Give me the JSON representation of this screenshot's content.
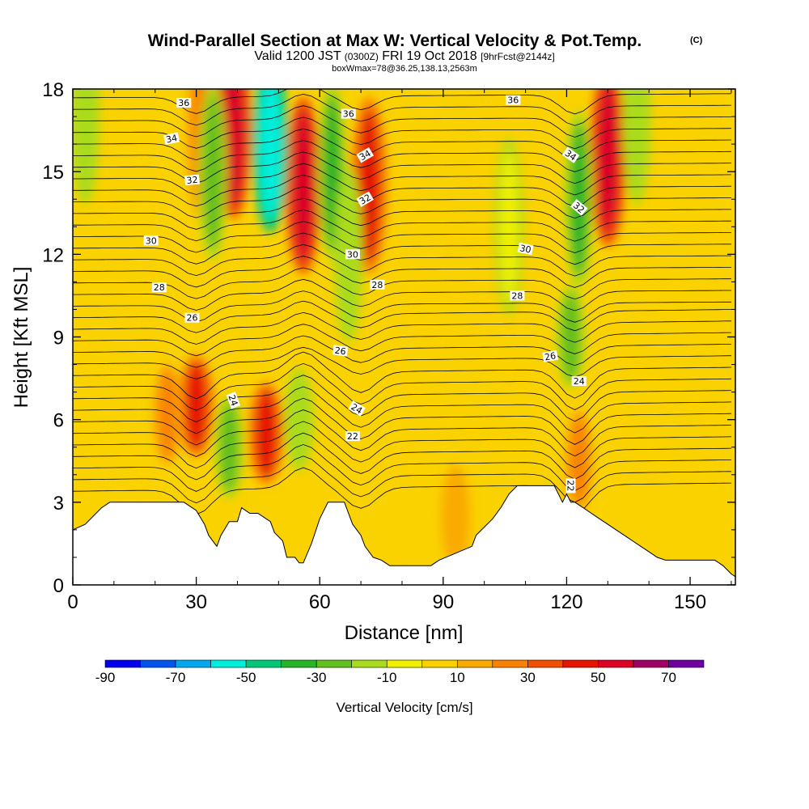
{
  "header": {
    "title_main": "Wind-Parallel Section at Max W: Vertical Velocity & Pot.Temp.",
    "title_mark": "(C)",
    "valid_a": "Valid 1200 JST ",
    "valid_b": "(0300Z)",
    "valid_c": " FRI 19 Oct 2018 ",
    "valid_d": "[9hrFcst@2144z]",
    "box_info": "boxWmax=78@36.25,138.13,2563m"
  },
  "chart_data": {
    "type": "heatmap",
    "xlabel": "Distance [nm]",
    "ylabel": "Height [Kft MSL]",
    "xlim": [
      0,
      161
    ],
    "ylim": [
      0,
      18
    ],
    "x_ticks": [
      0,
      30,
      60,
      90,
      120,
      150
    ],
    "x_tick_labels": [
      "0",
      "30",
      "60",
      "90",
      "120",
      "150"
    ],
    "y_ticks": [
      0,
      3,
      6,
      9,
      12,
      15,
      18
    ],
    "y_tick_labels": [
      "0",
      "3",
      "6",
      "9",
      "12",
      "15",
      "18"
    ],
    "colorbar": {
      "label": "Vertical Velocity [cm/s]",
      "bounds": [
        -90,
        -80,
        -70,
        -60,
        -50,
        -40,
        -30,
        -20,
        -10,
        0,
        10,
        20,
        30,
        40,
        50,
        60,
        70,
        80
      ],
      "tick_values": [
        -90,
        -70,
        -50,
        -30,
        -10,
        10,
        30,
        50,
        70
      ],
      "tick_labels": [
        "-90",
        "-70",
        "-50",
        "-30",
        "-10",
        "10",
        "30",
        "50",
        "70"
      ],
      "colors": [
        "#0000ee",
        "#0055ee",
        "#00a8ee",
        "#00eedc",
        "#00c878",
        "#28b428",
        "#64be1e",
        "#aadc1e",
        "#f0f000",
        "#fad200",
        "#faaa00",
        "#fa8200",
        "#f05000",
        "#e61400",
        "#dc0028",
        "#a00064",
        "#6e00a0"
      ]
    },
    "vertical_velocity_cells": [
      {
        "x": [
          0,
          8
        ],
        "y": [
          0,
          18
        ],
        "w": 5
      },
      {
        "x": [
          8,
          16
        ],
        "y": [
          0,
          18
        ],
        "w": 5
      },
      {
        "x": [
          16,
          22
        ],
        "y": [
          0,
          18
        ],
        "w": 5
      },
      {
        "x": [
          22,
          28
        ],
        "y": [
          0,
          18
        ],
        "w": 5
      },
      {
        "x": [
          28,
          33
        ],
        "y": [
          0,
          18
        ],
        "w": 5
      },
      {
        "x": [
          33,
          38
        ],
        "y": [
          0,
          18
        ],
        "w": 5
      },
      {
        "x": [
          38,
          43
        ],
        "y": [
          0,
          18
        ],
        "w": 5
      },
      {
        "x": [
          43,
          48
        ],
        "y": [
          0,
          18
        ],
        "w": 5
      },
      {
        "x": [
          48,
          53
        ],
        "y": [
          0,
          18
        ],
        "w": 5
      },
      {
        "x": [
          53,
          58
        ],
        "y": [
          0,
          18
        ],
        "w": 5
      },
      {
        "x": [
          58,
          63
        ],
        "y": [
          0,
          18
        ],
        "w": 5
      },
      {
        "x": [
          63,
          68
        ],
        "y": [
          0,
          18
        ],
        "w": 5
      },
      {
        "x": [
          68,
          73
        ],
        "y": [
          0,
          18
        ],
        "w": 5
      },
      {
        "x": [
          73,
          80
        ],
        "y": [
          0,
          18
        ],
        "w": 5
      },
      {
        "x": [
          80,
          90
        ],
        "y": [
          0,
          18
        ],
        "w": 5
      },
      {
        "x": [
          90,
          100
        ],
        "y": [
          0,
          18
        ],
        "w": 5
      },
      {
        "x": [
          100,
          108
        ],
        "y": [
          0,
          18
        ],
        "w": 5
      },
      {
        "x": [
          108,
          115
        ],
        "y": [
          0,
          18
        ],
        "w": 5
      },
      {
        "x": [
          115,
          120
        ],
        "y": [
          0,
          18
        ],
        "w": 5
      },
      {
        "x": [
          120,
          125
        ],
        "y": [
          0,
          18
        ],
        "w": 5
      },
      {
        "x": [
          125,
          130
        ],
        "y": [
          0,
          18
        ],
        "w": 5
      },
      {
        "x": [
          130,
          136
        ],
        "y": [
          0,
          18
        ],
        "w": 5
      },
      {
        "x": [
          136,
          145
        ],
        "y": [
          0,
          18
        ],
        "w": 5
      },
      {
        "x": [
          145,
          161
        ],
        "y": [
          0,
          18
        ],
        "w": 5
      }
    ],
    "updraft_cores": [
      {
        "x": 30,
        "y": 6.5,
        "w": 45
      },
      {
        "x": 23,
        "y": 6.2,
        "w": 25
      },
      {
        "x": 47,
        "y": 5.5,
        "w": 45
      },
      {
        "x": 31,
        "y": 16.5,
        "w": 20
      },
      {
        "x": 39,
        "y": 16.5,
        "w": 50
      },
      {
        "x": 56,
        "y": 14.5,
        "w": 55
      },
      {
        "x": 72,
        "y": 14.5,
        "w": 45
      },
      {
        "x": 130,
        "y": 15.5,
        "w": 50
      },
      {
        "x": 123,
        "y": 4.5,
        "w": 25
      },
      {
        "x": 93,
        "y": 2.5,
        "w": 15
      }
    ],
    "downdraft_cores": [
      {
        "x": 38,
        "y": 5.0,
        "w": -30
      },
      {
        "x": 34,
        "y": 15,
        "w": -30
      },
      {
        "x": 48,
        "y": 16,
        "w": -60
      },
      {
        "x": 63,
        "y": 15,
        "w": -35
      },
      {
        "x": 67,
        "y": 12,
        "w": -20
      },
      {
        "x": 55,
        "y": 6,
        "w": -15
      },
      {
        "x": 123,
        "y": 14,
        "w": -35
      },
      {
        "x": 121,
        "y": 9,
        "w": -25
      },
      {
        "x": 106,
        "y": 13,
        "w": -10
      },
      {
        "x": 3,
        "y": 17,
        "w": -15
      },
      {
        "x": 137,
        "y": 17,
        "w": -15
      }
    ],
    "terrain_profile": {
      "x": [
        0,
        3,
        5,
        7,
        9,
        18,
        27,
        30,
        32,
        33,
        35,
        36,
        38,
        40,
        41,
        43,
        45,
        48,
        49,
        51,
        52,
        54,
        55,
        56,
        58,
        60,
        62,
        66,
        67,
        68,
        70,
        71,
        73,
        75,
        77,
        79,
        81,
        83,
        85,
        87,
        89,
        97,
        98,
        100,
        102,
        104,
        106,
        108,
        111,
        117,
        119,
        120,
        121,
        122,
        124,
        126,
        128,
        130,
        132,
        134,
        136,
        138,
        140,
        142,
        144,
        146,
        148,
        156,
        158,
        160,
        161
      ],
      "y": [
        2.0,
        2.2,
        2.5,
        2.8,
        3.0,
        3.0,
        3.0,
        2.7,
        2.2,
        1.8,
        1.4,
        1.8,
        2.3,
        2.3,
        2.8,
        2.6,
        2.6,
        2.3,
        1.9,
        1.6,
        1.0,
        1.0,
        0.8,
        0.8,
        1.5,
        2.4,
        3.0,
        3.0,
        2.6,
        2.2,
        1.8,
        1.4,
        1.0,
        0.9,
        0.7,
        0.7,
        0.7,
        0.7,
        0.7,
        0.7,
        0.9,
        1.4,
        1.8,
        2.1,
        2.4,
        2.8,
        3.3,
        3.6,
        3.6,
        3.6,
        3.0,
        3.3,
        3.0,
        3.0,
        2.8,
        2.6,
        2.4,
        2.2,
        2.0,
        1.8,
        1.6,
        1.4,
        1.2,
        1.0,
        0.9,
        0.9,
        0.9,
        0.9,
        0.7,
        0.4,
        0.3
      ]
    },
    "theta_contour_labels": [
      {
        "text": "36",
        "x": 27,
        "y": 17.5,
        "angle": 0
      },
      {
        "text": "34",
        "x": 24,
        "y": 16.2,
        "angle": -12
      },
      {
        "text": "32",
        "x": 29,
        "y": 14.7,
        "angle": -5
      },
      {
        "text": "30",
        "x": 19,
        "y": 12.5,
        "angle": 0
      },
      {
        "text": "28",
        "x": 21,
        "y": 10.8,
        "angle": 0
      },
      {
        "text": "26",
        "x": 29,
        "y": 9.7,
        "angle": 0
      },
      {
        "text": "24",
        "x": 39,
        "y": 6.7,
        "angle": 70
      },
      {
        "text": "36",
        "x": 67,
        "y": 17.1,
        "angle": 0
      },
      {
        "text": "34",
        "x": 71,
        "y": 15.6,
        "angle": -30
      },
      {
        "text": "32",
        "x": 71,
        "y": 14.0,
        "angle": -30
      },
      {
        "text": "30",
        "x": 68,
        "y": 12.0,
        "angle": 0
      },
      {
        "text": "28",
        "x": 74,
        "y": 10.9,
        "angle": 0
      },
      {
        "text": "26",
        "x": 65,
        "y": 8.5,
        "angle": 8
      },
      {
        "text": "24",
        "x": 69,
        "y": 6.4,
        "angle": 30
      },
      {
        "text": "22",
        "x": 68,
        "y": 5.4,
        "angle": 0
      },
      {
        "text": "36",
        "x": 107,
        "y": 17.6,
        "angle": 0
      },
      {
        "text": "30",
        "x": 110,
        "y": 12.2,
        "angle": 12
      },
      {
        "text": "28",
        "x": 108,
        "y": 10.5,
        "angle": 0
      },
      {
        "text": "26",
        "x": 116,
        "y": 8.3,
        "angle": -10
      },
      {
        "text": "24",
        "x": 123,
        "y": 7.4,
        "angle": 0
      },
      {
        "text": "22",
        "x": 121,
        "y": 3.6,
        "angle": 90
      },
      {
        "text": "34",
        "x": 121,
        "y": 15.6,
        "angle": 35
      },
      {
        "text": "32",
        "x": 123,
        "y": 13.7,
        "angle": 40
      }
    ]
  }
}
